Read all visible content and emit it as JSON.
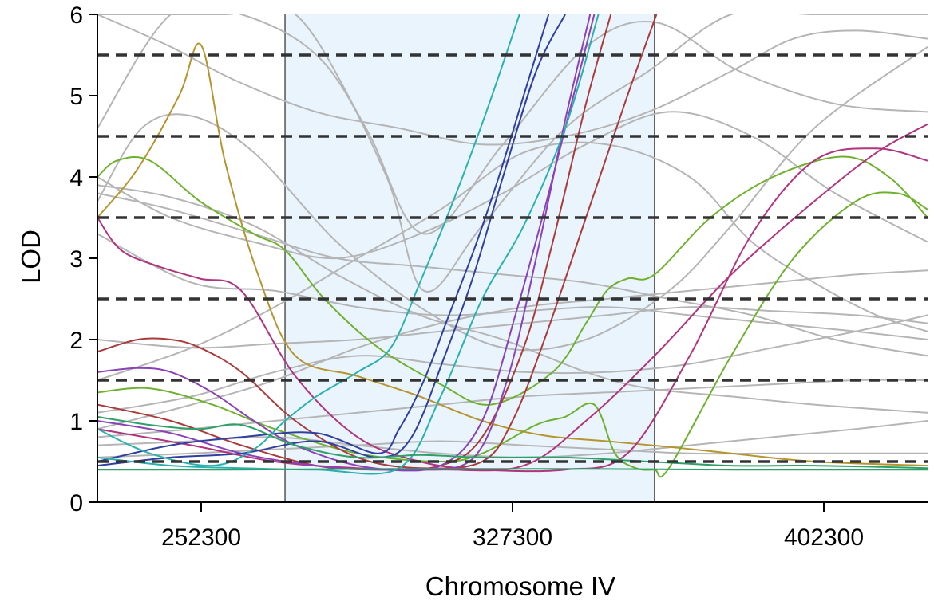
{
  "chart_data": {
    "type": "line",
    "xlabel": "Chromosome IV",
    "ylabel": "LOD",
    "xlim": [
      227300,
      427300
    ],
    "ylim": [
      0,
      6
    ],
    "x_ticks": [
      252300,
      327300,
      402300
    ],
    "y_ticks": [
      0,
      1,
      2,
      3,
      4,
      5,
      6
    ],
    "grid": false,
    "highlight_region": {
      "x_start": 272500,
      "x_end": 361500,
      "color": "#eaf4fd",
      "border_color": "#555555"
    },
    "thresholds": {
      "values": [
        0.5,
        1.5,
        2.5,
        3.5,
        4.5,
        5.5
      ],
      "color": "#333333",
      "style": "dashed"
    },
    "background_series_color": "#b5b5b5",
    "background_series": [
      {
        "x": [
          227300,
          242000,
          258000,
          275000,
          292000,
          306000,
          325000,
          345000,
          362000,
          382000,
          405000,
          427300
        ],
        "y": [
          6.0,
          6.0,
          6.0,
          6.0,
          4.6,
          3.3,
          4.4,
          5.6,
          5.9,
          5.3,
          4.9,
          4.8
        ]
      },
      {
        "x": [
          227300,
          245000,
          262000,
          282000,
          297000,
          306000,
          320000,
          340000,
          360000,
          380000,
          400000,
          427300
        ],
        "y": [
          4.6,
          6.0,
          6.0,
          5.4,
          4.0,
          2.6,
          3.4,
          4.6,
          5.3,
          6.0,
          6.0,
          6.0
        ]
      },
      {
        "x": [
          227300,
          238000,
          250000,
          265000,
          285000,
          305000,
          325000,
          345000,
          365000,
          380000,
          400000,
          427300
        ],
        "y": [
          3.7,
          4.6,
          4.75,
          4.3,
          3.2,
          2.4,
          1.9,
          2.0,
          2.6,
          3.4,
          4.6,
          5.6
        ]
      },
      {
        "x": [
          227300,
          245000,
          265000,
          285000,
          305000,
          325000,
          345000,
          360000,
          380000,
          400000,
          427300
        ],
        "y": [
          3.9,
          3.75,
          3.4,
          2.8,
          2.3,
          2.0,
          1.6,
          1.4,
          1.3,
          1.2,
          1.1
        ]
      },
      {
        "x": [
          227300,
          245000,
          265000,
          285000,
          305000,
          325000,
          345000,
          365000,
          385000,
          405000,
          427300
        ],
        "y": [
          3.8,
          3.6,
          3.3,
          3.0,
          2.9,
          2.8,
          2.7,
          2.5,
          2.3,
          2.0,
          1.8
        ]
      },
      {
        "x": [
          227300,
          250000,
          270000,
          290000,
          310000,
          330000,
          350000,
          370000,
          390000,
          410000,
          427300
        ],
        "y": [
          3.3,
          2.7,
          2.6,
          2.4,
          2.3,
          2.35,
          2.4,
          2.3,
          2.2,
          2.1,
          2.0
        ]
      },
      {
        "x": [
          227300,
          250000,
          270000,
          290000,
          310000,
          330000,
          350000,
          370000,
          390000,
          410000,
          427300
        ],
        "y": [
          2.0,
          1.9,
          1.95,
          2.0,
          2.1,
          2.2,
          2.3,
          2.4,
          2.35,
          2.3,
          2.2
        ]
      },
      {
        "x": [
          227300,
          250000,
          270000,
          290000,
          310000,
          330000,
          350000,
          370000,
          390000,
          410000,
          427300
        ],
        "y": [
          1.1,
          1.3,
          1.6,
          1.8,
          1.7,
          1.6,
          1.6,
          1.7,
          1.9,
          2.1,
          2.3
        ]
      },
      {
        "x": [
          227300,
          250000,
          270000,
          290000,
          310000,
          330000,
          350000,
          370000,
          390000,
          410000,
          427300
        ],
        "y": [
          0.8,
          0.9,
          1.0,
          1.1,
          1.2,
          1.3,
          1.35,
          1.4,
          1.45,
          1.5,
          1.5
        ]
      },
      {
        "x": [
          227300,
          250000,
          270000,
          290000,
          310000,
          330000,
          350000,
          370000,
          390000,
          410000,
          427300
        ],
        "y": [
          0.7,
          0.75,
          0.8,
          0.7,
          0.6,
          0.55,
          0.6,
          0.7,
          0.8,
          0.9,
          1.0
        ]
      },
      {
        "x": [
          227300,
          250000,
          270000,
          290000,
          310000,
          330000,
          350000,
          370000,
          390000,
          410000,
          427300
        ],
        "y": [
          0.55,
          0.6,
          0.65,
          0.7,
          0.75,
          0.7,
          0.65,
          0.6,
          0.6,
          0.6,
          0.6
        ]
      },
      {
        "x": [
          227300,
          245000,
          260000,
          280000,
          300000,
          320000,
          340000,
          360000,
          380000,
          395000,
          410000,
          427300
        ],
        "y": [
          6.0,
          5.6,
          5.2,
          4.8,
          4.6,
          4.4,
          4.5,
          4.8,
          5.3,
          5.7,
          5.8,
          5.7
        ]
      },
      {
        "x": [
          227300,
          250000,
          270000,
          290000,
          310000,
          330000,
          350000,
          370000,
          385000,
          400000,
          415000,
          427300
        ],
        "y": [
          1.5,
          1.9,
          2.4,
          3.0,
          3.6,
          4.3,
          4.4,
          4.0,
          3.2,
          2.7,
          2.3,
          2.1
        ]
      },
      {
        "x": [
          227300,
          250000,
          270000,
          290000,
          310000,
          330000,
          350000,
          370000,
          390000,
          410000,
          427300
        ],
        "y": [
          0.9,
          1.2,
          1.5,
          1.9,
          2.2,
          2.4,
          2.5,
          2.6,
          2.7,
          2.8,
          2.85
        ]
      },
      {
        "x": [
          227300,
          245000,
          265000,
          285000,
          305000,
          325000,
          345000,
          365000,
          385000,
          405000,
          427300
        ],
        "y": [
          4.0,
          3.5,
          3.2,
          3.0,
          3.3,
          3.8,
          4.4,
          4.8,
          4.5,
          3.8,
          3.2
        ]
      }
    ],
    "series": [
      {
        "color": "#b5952f",
        "x": [
          227300,
          237000,
          247000,
          252300,
          258000,
          266000,
          275000,
          290000,
          305000,
          320000,
          335000,
          350000,
          365000,
          380000,
          400000,
          427300
        ],
        "y": [
          3.5,
          4.1,
          5.0,
          5.62,
          4.2,
          2.8,
          1.8,
          1.55,
          1.3,
          1.0,
          0.82,
          0.75,
          0.68,
          0.6,
          0.5,
          0.45
        ]
      },
      {
        "color": "#6fb12f",
        "x": [
          227300,
          232000,
          240000,
          252000,
          265000,
          272500,
          282000,
          295000,
          310000,
          322000,
          337000,
          345000,
          350000,
          355000,
          361500,
          375000,
          390000,
          407000,
          418000,
          427300
        ],
        "y": [
          4.0,
          4.2,
          4.2,
          3.7,
          3.3,
          3.1,
          2.5,
          1.9,
          1.45,
          1.2,
          1.6,
          2.2,
          2.6,
          2.75,
          2.8,
          3.5,
          4.0,
          4.25,
          4.0,
          3.5
        ]
      },
      {
        "color": "#6fb12f",
        "x": [
          227300,
          240000,
          255000,
          270000,
          290000,
          310000,
          320000,
          333000,
          340000,
          347000,
          352000,
          357000,
          361500,
          365000,
          380000,
          395000,
          410000,
          420000,
          427300
        ],
        "y": [
          1.35,
          1.4,
          1.2,
          0.9,
          0.6,
          0.5,
          0.6,
          0.95,
          1.05,
          1.2,
          0.6,
          0.42,
          0.4,
          0.42,
          1.8,
          3.0,
          3.7,
          3.8,
          3.6
        ]
      },
      {
        "color": "#b0357f",
        "x": [
          227300,
          233000,
          242000,
          252000,
          262000,
          275000,
          290000,
          305000,
          320000,
          340000,
          355000,
          370000,
          385000,
          400000,
          415000,
          427300
        ],
        "y": [
          3.5,
          3.1,
          2.9,
          2.75,
          2.6,
          1.55,
          0.8,
          0.5,
          0.4,
          0.4,
          0.6,
          1.8,
          3.3,
          4.2,
          4.35,
          4.2
        ]
      },
      {
        "color": "#b0357f",
        "x": [
          227300,
          250000,
          270000,
          290000,
          310000,
          330000,
          345000,
          361500,
          380000,
          400000,
          415000,
          427300
        ],
        "y": [
          0.9,
          0.7,
          0.5,
          0.42,
          0.4,
          0.45,
          1.0,
          1.8,
          2.8,
          3.7,
          4.3,
          4.65
        ]
      },
      {
        "color": "#a93b3b",
        "x": [
          227300,
          237000,
          245000,
          252000,
          262000,
          275000,
          290000,
          305000,
          320000,
          327300,
          335000,
          345000,
          355000,
          362000
        ],
        "y": [
          1.85,
          2.0,
          2.0,
          1.9,
          1.6,
          1.0,
          0.55,
          0.42,
          0.5,
          1.0,
          2.0,
          3.5,
          5.0,
          6.0
        ]
      },
      {
        "color": "#a93b3b",
        "x": [
          227300,
          245000,
          262000,
          280000,
          295000,
          310000,
          320000,
          330000,
          337000,
          345000,
          351000
        ],
        "y": [
          1.2,
          1.0,
          0.7,
          0.45,
          0.4,
          0.45,
          0.8,
          1.9,
          3.2,
          4.9,
          6.0
        ]
      },
      {
        "color": "#8a42b6",
        "x": [
          227300,
          237000,
          245000,
          255000,
          265000,
          275000,
          290000,
          305000,
          318000,
          326000,
          333000,
          340000,
          346000
        ],
        "y": [
          1.6,
          1.65,
          1.6,
          1.35,
          1.0,
          0.7,
          0.45,
          0.4,
          0.55,
          1.5,
          3.0,
          4.7,
          6.0
        ]
      },
      {
        "color": "#8a42b6",
        "x": [
          227300,
          245000,
          262000,
          280000,
          295000,
          310000,
          320000,
          328000,
          335000,
          341000,
          347000
        ],
        "y": [
          1.0,
          0.85,
          0.6,
          0.45,
          0.4,
          0.45,
          1.0,
          2.3,
          3.6,
          4.8,
          6.0
        ]
      },
      {
        "color": "#2f3fa0",
        "x": [
          227300,
          245000,
          262000,
          280000,
          295000,
          303000,
          311000,
          318000,
          325000,
          333000,
          340000
        ],
        "y": [
          0.45,
          0.55,
          0.6,
          0.75,
          0.55,
          0.8,
          1.8,
          2.8,
          4.0,
          5.3,
          6.0
        ]
      },
      {
        "color": "#2f3fa0",
        "x": [
          227300,
          245000,
          262000,
          280000,
          295000,
          300000,
          306000,
          312000,
          318000,
          324000,
          330000,
          336000
        ],
        "y": [
          0.5,
          0.7,
          0.8,
          0.85,
          0.6,
          0.9,
          1.5,
          2.3,
          3.1,
          4.0,
          5.0,
          6.0
        ]
      },
      {
        "color": "#2bb0b0",
        "x": [
          227300,
          240000,
          255000,
          265000,
          272500,
          280000,
          290000,
          298000,
          305000,
          313000,
          321000,
          329000
        ],
        "y": [
          0.9,
          0.6,
          0.45,
          0.65,
          1.0,
          1.3,
          1.6,
          1.9,
          2.7,
          3.7,
          4.8,
          6.0
        ]
      },
      {
        "color": "#2bb0b0",
        "x": [
          227300,
          245000,
          262000,
          280000,
          300000,
          310000,
          320000,
          330000,
          340000,
          348000
        ],
        "y": [
          0.55,
          0.45,
          0.42,
          0.4,
          0.42,
          1.3,
          2.5,
          3.4,
          4.6,
          6.0
        ]
      },
      {
        "color": "#2ea067",
        "x": [
          227300,
          240000,
          252000,
          262000,
          275000,
          290000,
          305000,
          320000,
          340000,
          360000,
          380000,
          400000,
          427300
        ],
        "y": [
          1.05,
          0.95,
          0.9,
          0.95,
          0.7,
          0.55,
          0.58,
          0.55,
          0.55,
          0.5,
          0.45,
          0.45,
          0.42
        ]
      },
      {
        "color": "#2ea067",
        "x": [
          227300,
          260000,
          300000,
          340000,
          380000,
          427300
        ],
        "y": [
          0.4,
          0.4,
          0.41,
          0.41,
          0.4,
          0.4
        ]
      }
    ]
  }
}
